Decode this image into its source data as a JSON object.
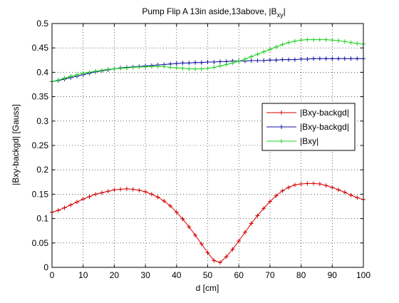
{
  "chart_data": {
    "type": "line",
    "title_main": "Pump Flip A 13in aside,13above, |B",
    "title_sub": "xy",
    "title_end": "|",
    "xlabel": "d [cm]",
    "ylabel": "|Bxy-backgd| [Gauss]",
    "xlim": [
      0,
      100
    ],
    "ylim": [
      0,
      0.5
    ],
    "x_ticks": [
      0,
      10,
      20,
      30,
      40,
      50,
      60,
      70,
      80,
      90,
      100
    ],
    "x_tick_labels": [
      "0",
      "10",
      "20",
      "30",
      "40",
      "50",
      "60",
      "70",
      "80",
      "90",
      "100"
    ],
    "y_ticks": [
      0,
      0.05,
      0.1,
      0.15,
      0.2,
      0.25,
      0.3,
      0.35,
      0.4,
      0.45,
      0.5
    ],
    "y_tick_labels": [
      "0",
      "0.05",
      "0.1",
      "0.15",
      "0.2",
      "0.25",
      "0.3",
      "0.35",
      "0.4",
      "0.45",
      "0.5"
    ],
    "grid": true,
    "legend_position": "right-middle",
    "x": [
      0,
      2,
      4,
      6,
      8,
      10,
      12,
      14,
      16,
      18,
      20,
      22,
      24,
      26,
      28,
      30,
      32,
      34,
      36,
      38,
      40,
      42,
      44,
      46,
      48,
      50,
      52,
      54,
      56,
      58,
      60,
      62,
      64,
      66,
      68,
      70,
      72,
      74,
      76,
      78,
      80,
      82,
      84,
      86,
      88,
      90,
      92,
      94,
      96,
      98,
      100
    ],
    "series": [
      {
        "name": "|Bxy-backgd|",
        "color": "#d40000",
        "values": [
          0.113,
          0.117,
          0.122,
          0.128,
          0.134,
          0.14,
          0.145,
          0.15,
          0.153,
          0.156,
          0.159,
          0.16,
          0.161,
          0.16,
          0.158,
          0.155,
          0.15,
          0.144,
          0.136,
          0.126,
          0.113,
          0.099,
          0.083,
          0.066,
          0.048,
          0.03,
          0.014,
          0.01,
          0.022,
          0.037,
          0.054,
          0.072,
          0.09,
          0.106,
          0.121,
          0.135,
          0.147,
          0.157,
          0.164,
          0.169,
          0.171,
          0.172,
          0.172,
          0.171,
          0.168,
          0.164,
          0.159,
          0.154,
          0.148,
          0.143,
          0.139
        ]
      },
      {
        "name": "|Bxy-backgd|",
        "color": "#1010a0",
        "values": [
          0.381,
          0.383,
          0.386,
          0.389,
          0.392,
          0.395,
          0.398,
          0.401,
          0.403,
          0.405,
          0.407,
          0.409,
          0.41,
          0.411,
          0.412,
          0.413,
          0.414,
          0.415,
          0.416,
          0.417,
          0.418,
          0.419,
          0.419,
          0.42,
          0.42,
          0.421,
          0.421,
          0.422,
          0.422,
          0.423,
          0.423,
          0.423,
          0.424,
          0.424,
          0.424,
          0.425,
          0.425,
          0.426,
          0.426,
          0.426,
          0.427,
          0.427,
          0.428,
          0.428,
          0.428,
          0.428,
          0.428,
          0.428,
          0.428,
          0.428,
          0.428
        ]
      },
      {
        "name": "|Bxy|",
        "color": "#20d020",
        "values": [
          0.381,
          0.384,
          0.388,
          0.392,
          0.395,
          0.398,
          0.4,
          0.402,
          0.404,
          0.406,
          0.407,
          0.408,
          0.409,
          0.41,
          0.411,
          0.411,
          0.412,
          0.412,
          0.412,
          0.41,
          0.409,
          0.408,
          0.407,
          0.407,
          0.407,
          0.408,
          0.41,
          0.413,
          0.416,
          0.419,
          0.423,
          0.427,
          0.432,
          0.437,
          0.442,
          0.447,
          0.452,
          0.457,
          0.461,
          0.464,
          0.466,
          0.467,
          0.467,
          0.467,
          0.467,
          0.466,
          0.465,
          0.463,
          0.461,
          0.459,
          0.458
        ]
      }
    ]
  }
}
